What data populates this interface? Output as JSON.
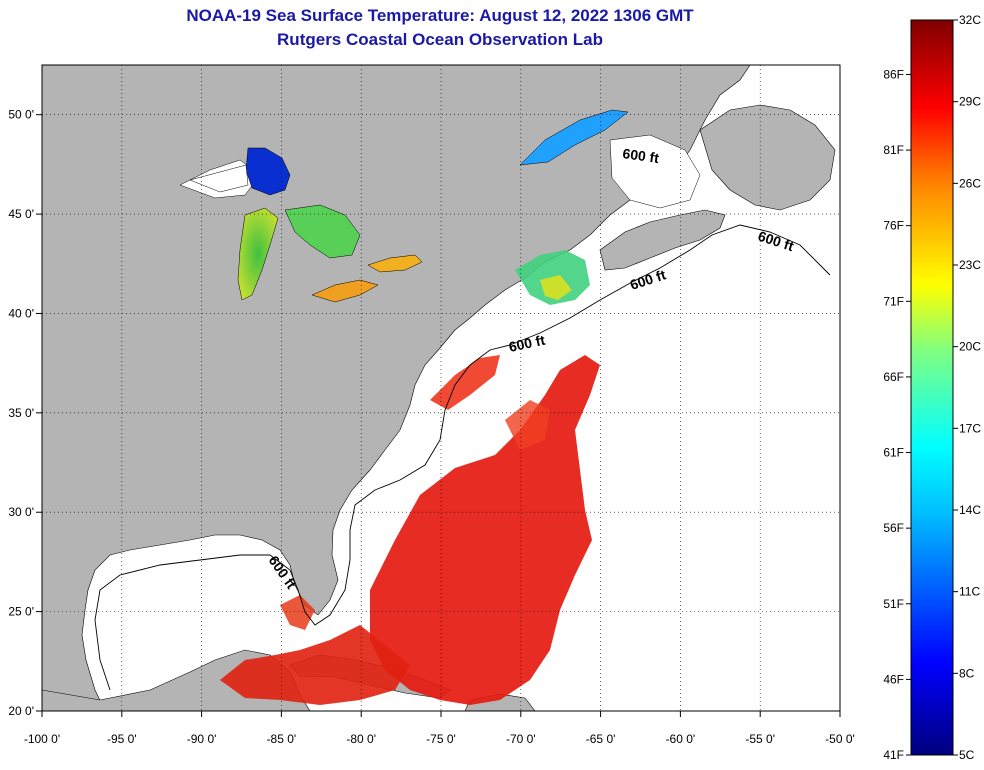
{
  "title_line1": "NOAA-19 Sea Surface Temperature:  August 12, 2022 1306 GMT",
  "title_line2": "Rutgers Coastal Ocean Observation Lab",
  "map": {
    "lon_range": [
      -100,
      -50
    ],
    "lat_range": [
      20,
      52.5
    ],
    "lon_ticks": [
      {
        "v": -100,
        "label": "-100 0'"
      },
      {
        "v": -95,
        "label": "-95 0'"
      },
      {
        "v": -90,
        "label": "-90 0'"
      },
      {
        "v": -85,
        "label": "-85 0'"
      },
      {
        "v": -80,
        "label": "-80 0'"
      },
      {
        "v": -75,
        "label": "-75 0'"
      },
      {
        "v": -70,
        "label": "-70 0'"
      },
      {
        "v": -65,
        "label": "-65 0'"
      },
      {
        "v": -60,
        "label": "-60 0'"
      },
      {
        "v": -55,
        "label": "-55 0'"
      },
      {
        "v": -50,
        "label": "-50 0'"
      }
    ],
    "lat_ticks": [
      {
        "v": 50,
        "label": "50 0'"
      },
      {
        "v": 45,
        "label": "45 0'"
      },
      {
        "v": 40,
        "label": "40 0'"
      },
      {
        "v": 35,
        "label": "35 0'"
      },
      {
        "v": 30,
        "label": "30 0'"
      },
      {
        "v": 25,
        "label": "25 0'"
      },
      {
        "v": 20,
        "label": "20 0'"
      }
    ],
    "contour_labels": [
      "600 ft",
      "600 ft",
      "600 ft",
      "600 ft",
      "600 ft"
    ],
    "land_color": "#b4b4b4",
    "water_color": "#ffffff"
  },
  "colorbar": {
    "celsius_range": [
      5,
      32
    ],
    "celsius_labels": [
      "32C",
      "29C",
      "26C",
      "23C",
      "20C",
      "17C",
      "14C",
      "11C",
      "8C",
      "5C"
    ],
    "fahrenheit_labels": [
      "86F",
      "81F",
      "76F",
      "71F",
      "66F",
      "61F",
      "56F",
      "51F",
      "46F",
      "41F"
    ],
    "colors": [
      "#00007f",
      "#0000ff",
      "#0080ff",
      "#00ffff",
      "#80ff80",
      "#ffff00",
      "#ff8000",
      "#ff0000",
      "#7f0000"
    ]
  }
}
